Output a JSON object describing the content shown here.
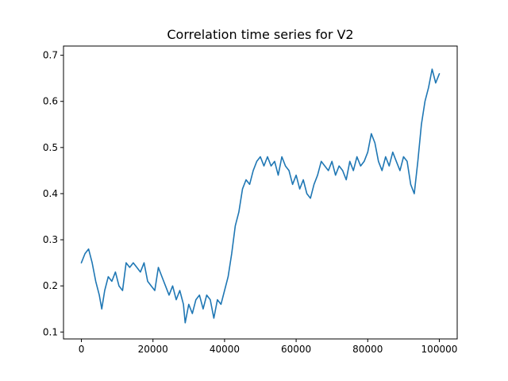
{
  "chart_data": {
    "type": "line",
    "title": "Correlation time series for V2",
    "xlabel": "",
    "ylabel": "",
    "xlim": [
      -5000,
      105000
    ],
    "ylim": [
      0.085,
      0.72
    ],
    "xticks": [
      0,
      20000,
      40000,
      60000,
      80000,
      100000
    ],
    "xtick_labels": [
      "0",
      "20000",
      "40000",
      "60000",
      "80000",
      "100000"
    ],
    "yticks": [
      0.1,
      0.2,
      0.3,
      0.4,
      0.5,
      0.6,
      0.7
    ],
    "ytick_labels": [
      "0.1",
      "0.2",
      "0.3",
      "0.4",
      "0.5",
      "0.6",
      "0.7"
    ],
    "grid": false,
    "series": [
      {
        "color": "#1f77b4",
        "x": [
          0,
          1000,
          2000,
          3000,
          4000,
          5000,
          5700,
          6500,
          7500,
          8500,
          9500,
          10500,
          11500,
          12500,
          13500,
          14500,
          15500,
          16500,
          17500,
          18500,
          19500,
          20500,
          21500,
          22500,
          23500,
          24500,
          25500,
          26500,
          27500,
          28500,
          29000,
          30000,
          31000,
          32000,
          33000,
          34000,
          35000,
          36000,
          37000,
          38000,
          39000,
          40000,
          41000,
          42000,
          43000,
          44000,
          45000,
          46000,
          47000,
          48000,
          49000,
          50000,
          51000,
          52000,
          53000,
          54000,
          55000,
          56000,
          57000,
          58000,
          59000,
          60000,
          61000,
          62000,
          63000,
          64000,
          65000,
          66000,
          67000,
          68000,
          69000,
          70000,
          71000,
          72000,
          73000,
          74000,
          75000,
          76000,
          77000,
          78000,
          79000,
          80000,
          81000,
          82000,
          83000,
          84000,
          85000,
          86000,
          87000,
          88000,
          89000,
          90000,
          91000,
          92000,
          93000,
          94000,
          95000,
          96000,
          97000,
          98000,
          99000,
          100000
        ],
        "y": [
          0.25,
          0.27,
          0.28,
          0.25,
          0.21,
          0.18,
          0.15,
          0.19,
          0.22,
          0.21,
          0.23,
          0.2,
          0.19,
          0.25,
          0.24,
          0.25,
          0.24,
          0.23,
          0.25,
          0.21,
          0.2,
          0.19,
          0.24,
          0.22,
          0.2,
          0.18,
          0.2,
          0.17,
          0.19,
          0.16,
          0.12,
          0.16,
          0.14,
          0.17,
          0.18,
          0.15,
          0.18,
          0.17,
          0.13,
          0.17,
          0.16,
          0.19,
          0.22,
          0.27,
          0.33,
          0.36,
          0.41,
          0.43,
          0.42,
          0.45,
          0.47,
          0.48,
          0.46,
          0.48,
          0.46,
          0.47,
          0.44,
          0.48,
          0.46,
          0.45,
          0.42,
          0.44,
          0.41,
          0.43,
          0.4,
          0.39,
          0.42,
          0.44,
          0.47,
          0.46,
          0.45,
          0.47,
          0.44,
          0.46,
          0.45,
          0.43,
          0.47,
          0.45,
          0.48,
          0.46,
          0.47,
          0.49,
          0.53,
          0.51,
          0.47,
          0.45,
          0.48,
          0.46,
          0.49,
          0.47,
          0.45,
          0.48,
          0.47,
          0.42,
          0.4,
          0.47,
          0.55,
          0.6,
          0.63,
          0.67,
          0.64,
          0.66
        ]
      }
    ]
  }
}
